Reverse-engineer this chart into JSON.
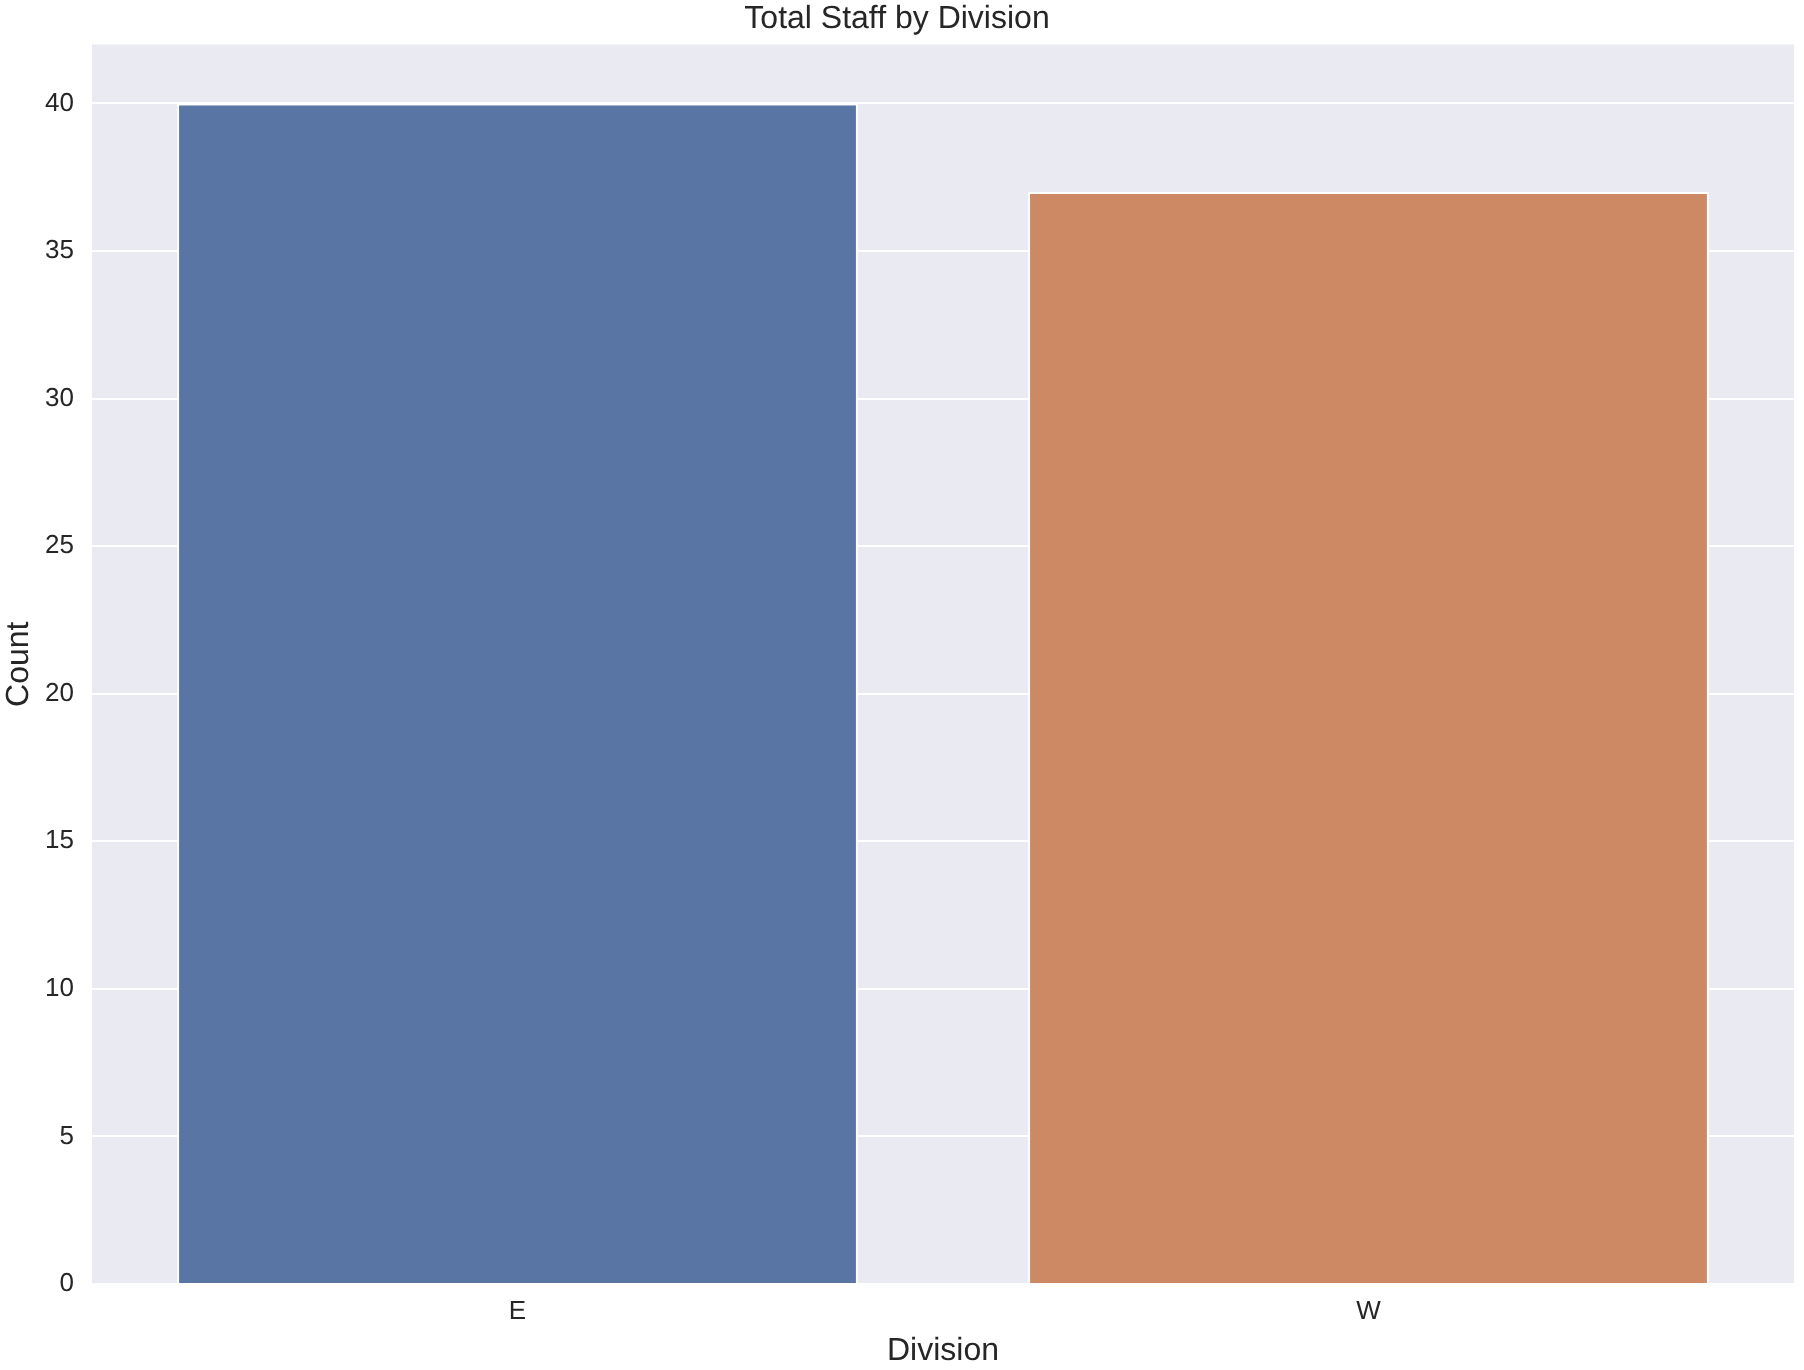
{
  "chart_data": {
    "type": "bar",
    "title": "Total Staff by Division",
    "xlabel": "Division",
    "ylabel": "Count",
    "categories": [
      "E",
      "W"
    ],
    "values": [
      40,
      37
    ],
    "colors": [
      "#5975a4",
      "#cc8963"
    ],
    "ylim": [
      0,
      42
    ],
    "yticks": [
      0,
      5,
      10,
      15,
      20,
      25,
      30,
      35,
      40
    ],
    "grid": "y"
  }
}
